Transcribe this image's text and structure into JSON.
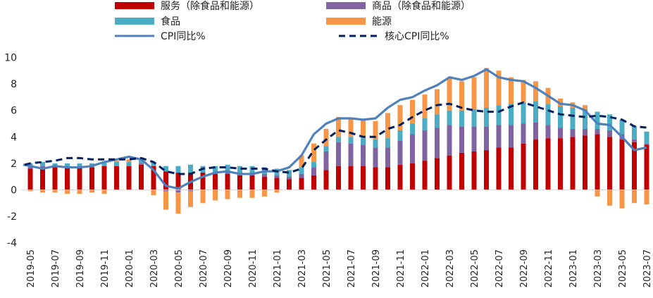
{
  "chart_data": {
    "type": "bar",
    "stacked": true,
    "x": [
      "2019-05",
      "2019-06",
      "2019-07",
      "2019-08",
      "2019-09",
      "2019-10",
      "2019-11",
      "2019-12",
      "2020-01",
      "2020-02",
      "2020-03",
      "2020-04",
      "2020-05",
      "2020-06",
      "2020-07",
      "2020-08",
      "2020-09",
      "2020-10",
      "2020-11",
      "2020-12",
      "2021-01",
      "2021-02",
      "2021-03",
      "2021-04",
      "2021-05",
      "2021-06",
      "2021-07",
      "2021-08",
      "2021-09",
      "2021-10",
      "2021-11",
      "2021-12",
      "2022-01",
      "2022-02",
      "2022-03",
      "2022-04",
      "2022-05",
      "2022-06",
      "2022-07",
      "2022-08",
      "2022-09",
      "2022-10",
      "2022-11",
      "2022-12",
      "2023-01",
      "2023-02",
      "2023-03",
      "2023-04",
      "2023-05",
      "2023-06",
      "2023-07"
    ],
    "x_tick_labels": [
      "2019-05",
      "2019-07",
      "2019-09",
      "2019-11",
      "2020-01",
      "2020-03",
      "2020-05",
      "2020-07",
      "2020-09",
      "2020-11",
      "2021-01",
      "2021-03",
      "2021-05",
      "2021-07",
      "2021-09",
      "2021-11",
      "2022-01",
      "2022-03",
      "2022-05",
      "2022-07",
      "2022-09",
      "2022-11",
      "2023-01",
      "2023-03",
      "2023-05",
      "2023-07"
    ],
    "ylim": [
      -4,
      10
    ],
    "y_ticks": [
      -4,
      -2,
      0,
      2,
      4,
      6,
      8,
      10
    ],
    "grid": false,
    "legend_position": "top",
    "series": [
      {
        "name": "服务（除食品和能源）",
        "kind": "bar",
        "color": "#C00000",
        "values": [
          1.6,
          1.7,
          1.7,
          1.7,
          1.7,
          1.7,
          1.8,
          1.8,
          1.8,
          1.9,
          1.8,
          1.4,
          1.3,
          1.3,
          1.3,
          1.2,
          1.2,
          1.1,
          1.1,
          1.0,
          0.9,
          0.8,
          0.9,
          1.1,
          1.5,
          1.8,
          1.8,
          1.8,
          1.7,
          1.7,
          1.9,
          2.0,
          2.2,
          2.4,
          2.6,
          2.8,
          2.9,
          3.0,
          3.2,
          3.2,
          3.5,
          3.8,
          3.9,
          3.9,
          4.0,
          4.1,
          4.2,
          4.0,
          3.8,
          3.6,
          3.4
        ]
      },
      {
        "name": "商品（除食品和能源）",
        "kind": "bar",
        "color": "#8064A2",
        "values": [
          0.1,
          0.1,
          0.1,
          0.0,
          0.0,
          0.0,
          0.0,
          0.0,
          0.0,
          0.1,
          0.0,
          -0.1,
          -0.2,
          -0.1,
          0.0,
          0.1,
          0.2,
          0.2,
          0.2,
          0.2,
          0.2,
          0.2,
          0.3,
          0.6,
          1.4,
          1.8,
          1.7,
          1.6,
          1.5,
          1.5,
          1.8,
          2.2,
          2.3,
          2.3,
          2.3,
          2.0,
          1.9,
          1.8,
          1.7,
          1.7,
          1.5,
          1.3,
          1.0,
          0.8,
          0.6,
          0.5,
          0.4,
          0.5,
          0.4,
          0.2,
          0.1
        ]
      },
      {
        "name": "食品",
        "kind": "bar",
        "color": "#4BACC6",
        "values": [
          0.3,
          0.3,
          0.2,
          0.3,
          0.3,
          0.3,
          0.3,
          0.3,
          0.3,
          0.3,
          0.3,
          0.4,
          0.5,
          0.6,
          0.5,
          0.5,
          0.5,
          0.5,
          0.5,
          0.5,
          0.5,
          0.5,
          0.5,
          0.4,
          0.4,
          0.4,
          0.5,
          0.5,
          0.6,
          0.7,
          0.8,
          0.8,
          0.9,
          1.0,
          1.1,
          1.2,
          1.3,
          1.4,
          1.5,
          1.6,
          1.6,
          1.6,
          1.6,
          1.6,
          1.6,
          1.5,
          1.3,
          1.2,
          1.1,
          1.0,
          0.9
        ]
      },
      {
        "name": "能源",
        "kind": "bar",
        "color": "#F79646",
        "values": [
          -0.1,
          -0.2,
          -0.2,
          -0.3,
          -0.3,
          -0.2,
          -0.3,
          0.1,
          0.2,
          0.0,
          -0.4,
          -1.4,
          -1.6,
          -1.2,
          -1.0,
          -0.8,
          -0.7,
          -0.6,
          -0.6,
          -0.5,
          -0.2,
          0.0,
          0.9,
          1.4,
          1.3,
          1.5,
          1.4,
          1.4,
          1.4,
          1.9,
          1.9,
          1.8,
          1.8,
          1.9,
          2.5,
          2.2,
          2.4,
          3.0,
          2.6,
          2.0,
          1.7,
          1.5,
          1.2,
          0.6,
          0.4,
          0.3,
          -0.5,
          -1.2,
          -1.4,
          -1.0,
          -1.1
        ]
      },
      {
        "name": "CPI同比%",
        "kind": "line",
        "color": "#4F81BD",
        "values": [
          1.8,
          1.6,
          1.8,
          1.7,
          1.7,
          1.8,
          2.1,
          2.3,
          2.5,
          2.3,
          1.5,
          0.3,
          0.1,
          0.6,
          1.0,
          1.3,
          1.4,
          1.2,
          1.2,
          1.4,
          1.4,
          1.7,
          2.6,
          4.2,
          5.0,
          5.4,
          5.4,
          5.3,
          5.4,
          6.2,
          6.8,
          7.0,
          7.5,
          7.9,
          8.5,
          8.3,
          8.6,
          9.1,
          8.5,
          8.3,
          8.2,
          7.7,
          7.1,
          6.5,
          6.4,
          6.0,
          5.0,
          4.9,
          4.0,
          3.0,
          3.2
        ]
      },
      {
        "name": "核心CPI同比%",
        "kind": "line",
        "dash": true,
        "color": "#002060",
        "values": [
          2.0,
          2.1,
          2.2,
          2.4,
          2.4,
          2.3,
          2.3,
          2.3,
          2.3,
          2.4,
          2.1,
          1.4,
          1.2,
          1.2,
          1.6,
          1.7,
          1.7,
          1.6,
          1.6,
          1.6,
          1.4,
          1.3,
          1.6,
          3.0,
          3.8,
          4.5,
          4.3,
          4.0,
          4.0,
          4.6,
          4.9,
          5.5,
          6.0,
          6.4,
          6.5,
          6.2,
          6.0,
          5.9,
          5.9,
          6.3,
          6.6,
          6.3,
          6.0,
          5.7,
          5.6,
          5.5,
          5.6,
          5.5,
          5.3,
          4.8,
          4.7
        ]
      }
    ]
  }
}
